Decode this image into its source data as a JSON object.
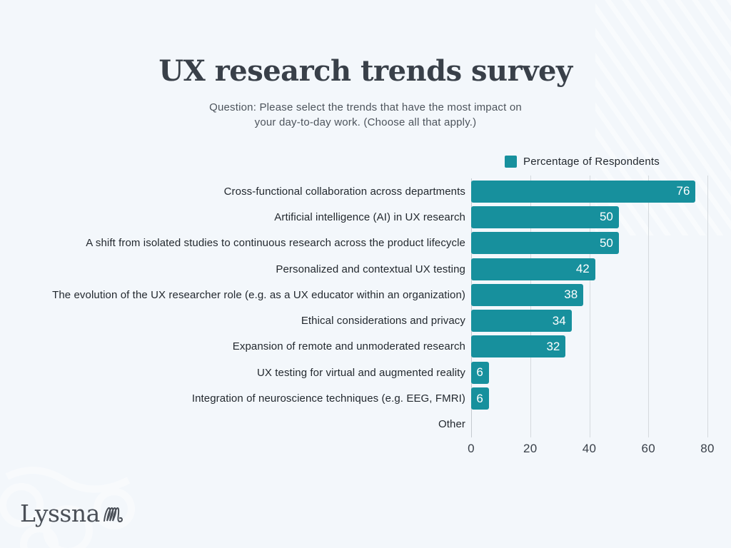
{
  "page": {
    "background_color": "#f3f7fb",
    "title": "UX research trends survey",
    "subtitle_line1": "Question: Please select the trends that have the most impact on",
    "subtitle_line2": "your day-to-day work. (Choose all that apply.)",
    "logo_text": "Lyssna"
  },
  "legend": {
    "label": "Percentage of Respondents",
    "swatch_color": "#17909d"
  },
  "chart_data": {
    "type": "bar",
    "orientation": "horizontal",
    "title": "UX research trends survey",
    "legend_entries": [
      "Percentage of Respondents"
    ],
    "legend_position": "top-right",
    "categories": [
      "Cross-functional collaboration across departments",
      "Artificial intelligence (AI) in UX research",
      "A shift from isolated studies to continuous research across the product lifecycle",
      "Personalized and contextual UX testing",
      "The evolution of the UX researcher role (e.g. as a UX educator within an organization)",
      "Ethical considerations and privacy",
      "Expansion of remote and unmoderated research",
      "UX testing for virtual and augmented reality",
      "Integration of neuroscience techniques (e.g. EEG, FMRI)",
      "Other"
    ],
    "values": [
      76,
      50,
      50,
      42,
      38,
      34,
      32,
      6,
      6,
      0
    ],
    "xlabel": "",
    "ylabel": "",
    "xlim": [
      0,
      80
    ],
    "x_ticks": [
      0,
      20,
      40,
      60,
      80
    ],
    "grid": true,
    "bar_color": "#17909d",
    "value_label_color": "#ffffff",
    "gridline_color": "#d5dade",
    "axis_line_color": "#c4cad0"
  }
}
